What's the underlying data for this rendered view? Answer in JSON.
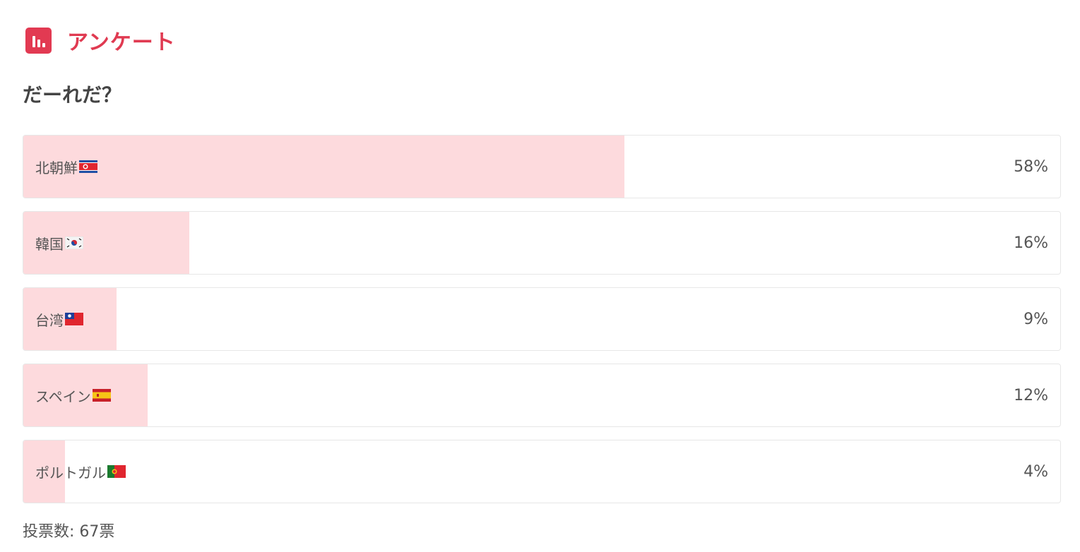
{
  "header": {
    "title": "アンケート",
    "icon": "bar-chart-icon",
    "accent": "#e23a52"
  },
  "question": "だーれだ？",
  "options": [
    {
      "label": "北朝鮮",
      "flag": "north-korea-flag-icon",
      "percent": 58,
      "percent_label": "58%"
    },
    {
      "label": "韓国",
      "flag": "south-korea-flag-icon",
      "percent": 16,
      "percent_label": "16%"
    },
    {
      "label": "台湾",
      "flag": "taiwan-flag-icon",
      "percent": 9,
      "percent_label": "9%"
    },
    {
      "label": "スペイン",
      "flag": "spain-flag-icon",
      "percent": 12,
      "percent_label": "12%"
    },
    {
      "label": "ポルトガル",
      "flag": "portugal-flag-icon",
      "percent": 4,
      "percent_label": "4%"
    }
  ],
  "footer": {
    "votes_label": "投票数: 67票"
  },
  "colors": {
    "fill": "#fddadd",
    "border": "#e7e7e7"
  }
}
